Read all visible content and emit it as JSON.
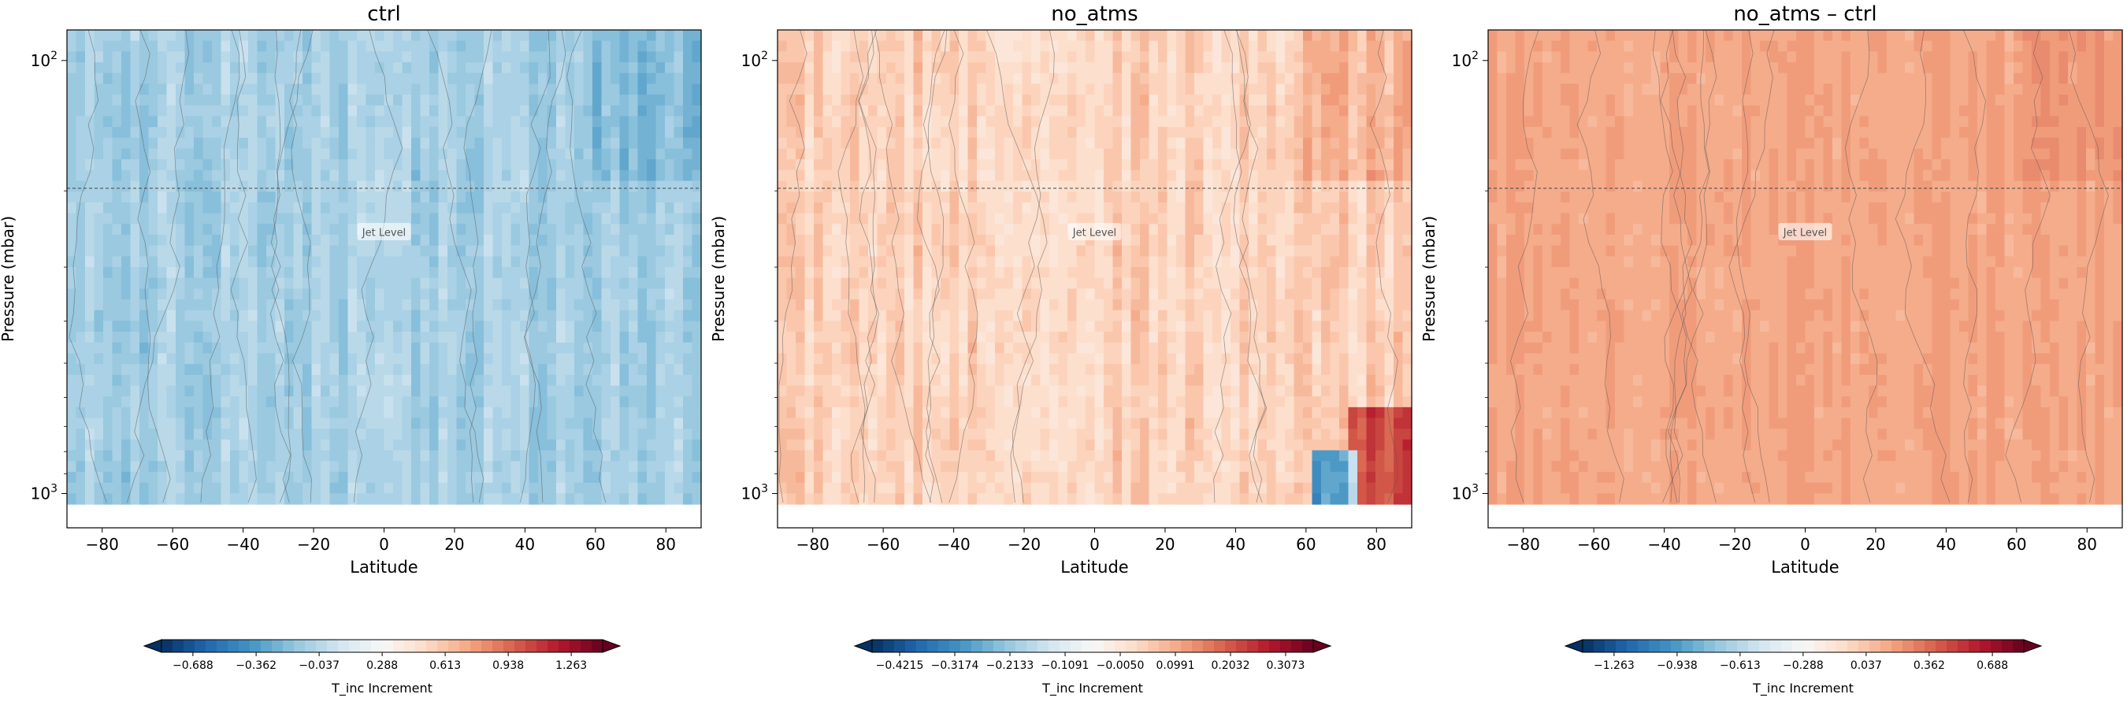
{
  "chart_data": [
    {
      "type": "heatmap",
      "title": "ctrl",
      "xlabel": "Latitude",
      "ylabel": "Pressure (mbar)",
      "xlim": [
        -90,
        90
      ],
      "ylim": [
        1200,
        85
      ],
      "yscale": "log",
      "xticks": [
        -80,
        -60,
        -40,
        -20,
        0,
        20,
        40,
        60,
        80
      ],
      "ytick_labels": [
        {
          "value": 100,
          "base": "10",
          "exp": "2"
        },
        {
          "value": 1000,
          "base": "10",
          "exp": "3"
        }
      ],
      "annotation": {
        "text": "Jet Level",
        "pressure": 250
      },
      "colorbar": {
        "label": "T_inc Increment",
        "cmap": "RdBu_r",
        "vmin": -0.85,
        "vmax": 1.425,
        "tick_labels": [
          "−0.688",
          "−0.362",
          "−0.037",
          "0.288",
          "0.613",
          "0.938",
          "1.263"
        ],
        "tick_values": [
          -0.688,
          -0.362,
          -0.037,
          0.288,
          0.613,
          0.938,
          1.263
        ]
      },
      "field": {
        "base": -0.1,
        "amp": 0.12,
        "seed": 1
      }
    },
    {
      "type": "heatmap",
      "title": "no_atms",
      "xlabel": "Latitude",
      "ylabel": "Pressure (mbar)",
      "xlim": [
        -90,
        90
      ],
      "ylim": [
        1200,
        85
      ],
      "yscale": "log",
      "xticks": [
        -80,
        -60,
        -40,
        -20,
        0,
        20,
        40,
        60,
        80
      ],
      "ytick_labels": [
        {
          "value": 100,
          "base": "10",
          "exp": "2"
        },
        {
          "value": 1000,
          "base": "10",
          "exp": "3"
        }
      ],
      "annotation": {
        "text": "Jet Level",
        "pressure": 250
      },
      "colorbar": {
        "label": "T_inc Increment",
        "cmap": "RdBu_r",
        "vmin": -0.4736,
        "vmax": 0.3594,
        "tick_labels": [
          "−0.4215",
          "−0.3174",
          "−0.2133",
          "−0.1091",
          "−0.0050",
          "0.0991",
          "0.2032",
          "0.3073"
        ],
        "tick_values": [
          -0.4215,
          -0.3174,
          -0.2133,
          -0.1091,
          -0.005,
          0.0991,
          0.2032,
          0.3073
        ]
      },
      "field": {
        "base": 0.04,
        "amp": 0.05,
        "seed": 2
      }
    },
    {
      "type": "heatmap",
      "title": "no_atms – ctrl",
      "xlabel": "Latitude",
      "ylabel": "Pressure (mbar)",
      "xlim": [
        -90,
        90
      ],
      "ylim": [
        1200,
        85
      ],
      "yscale": "log",
      "xticks": [
        -80,
        -60,
        -40,
        -20,
        0,
        20,
        40,
        60,
        80
      ],
      "ytick_labels": [
        {
          "value": 100,
          "base": "10",
          "exp": "2"
        },
        {
          "value": 1000,
          "base": "10",
          "exp": "3"
        }
      ],
      "annotation": {
        "text": "Jet Level",
        "pressure": 250
      },
      "colorbar": {
        "label": "T_inc Increment",
        "cmap": "RdBu_r",
        "vmin": -1.425,
        "vmax": 0.85,
        "tick_labels": [
          "−1.263",
          "−0.938",
          "−0.613",
          "−0.288",
          "0.037",
          "0.362",
          "0.688"
        ],
        "tick_values": [
          -1.263,
          -0.938,
          -0.613,
          -0.288,
          0.037,
          0.362,
          0.688
        ]
      },
      "field": {
        "base": 0.16,
        "amp": 0.06,
        "seed": 3
      }
    }
  ]
}
